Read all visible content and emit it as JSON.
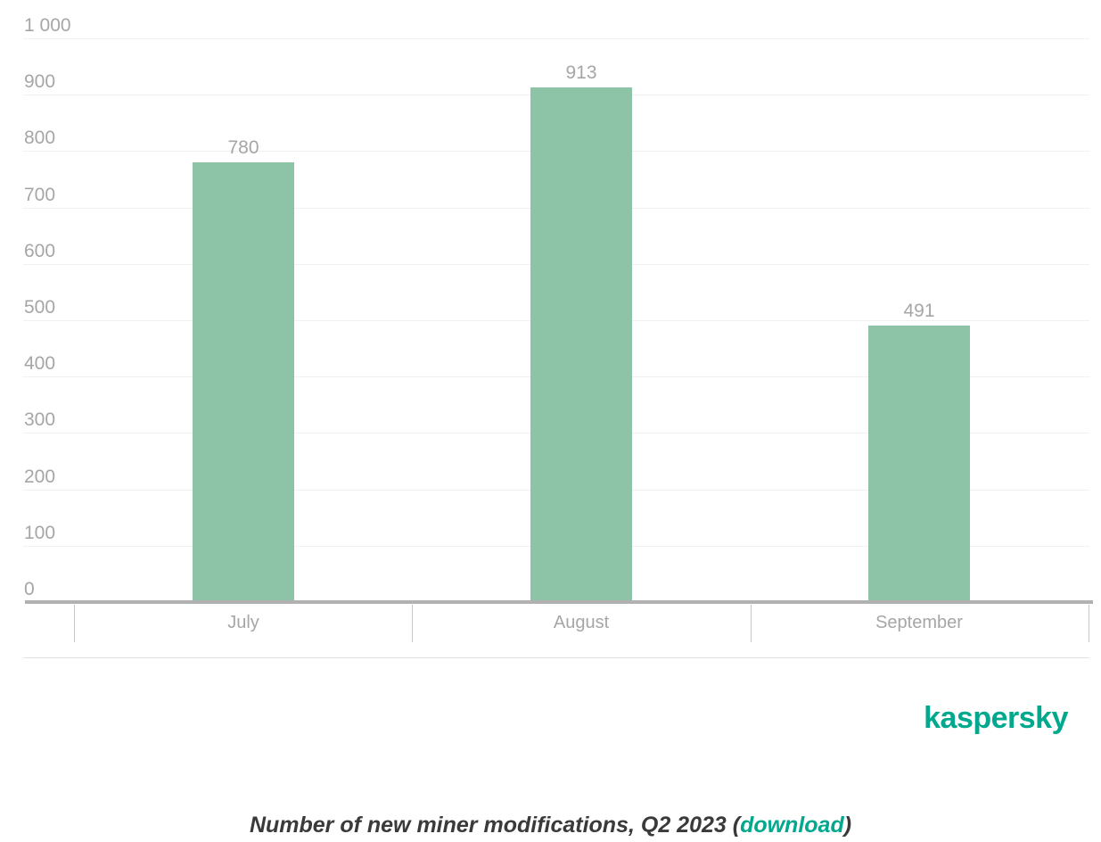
{
  "chart_data": {
    "type": "bar",
    "title": "Number of new miner modifications, Q2 2023",
    "categories": [
      "July",
      "August",
      "September"
    ],
    "values": [
      780,
      913,
      491
    ],
    "value_labels": [
      "780",
      "913",
      "491"
    ],
    "xlabel": "",
    "ylabel": "",
    "ylim": [
      0,
      1000
    ],
    "ytick_interval": 100,
    "ytick_labels": [
      "0",
      "100",
      "200",
      "300",
      "400",
      "500",
      "600",
      "700",
      "800",
      "900",
      "1 000"
    ],
    "grid": true,
    "legend": "none",
    "bar_color": "#8dc4a7",
    "axis_label_color": "#a6a6a6"
  },
  "branding": {
    "logo_text": "kaspersky",
    "logo_color": "#00a88e"
  },
  "caption": {
    "prefix": "Number of new miner modifications, Q2 2023 (",
    "link_text": "download",
    "suffix": ")",
    "link_color": "#00a88e"
  }
}
